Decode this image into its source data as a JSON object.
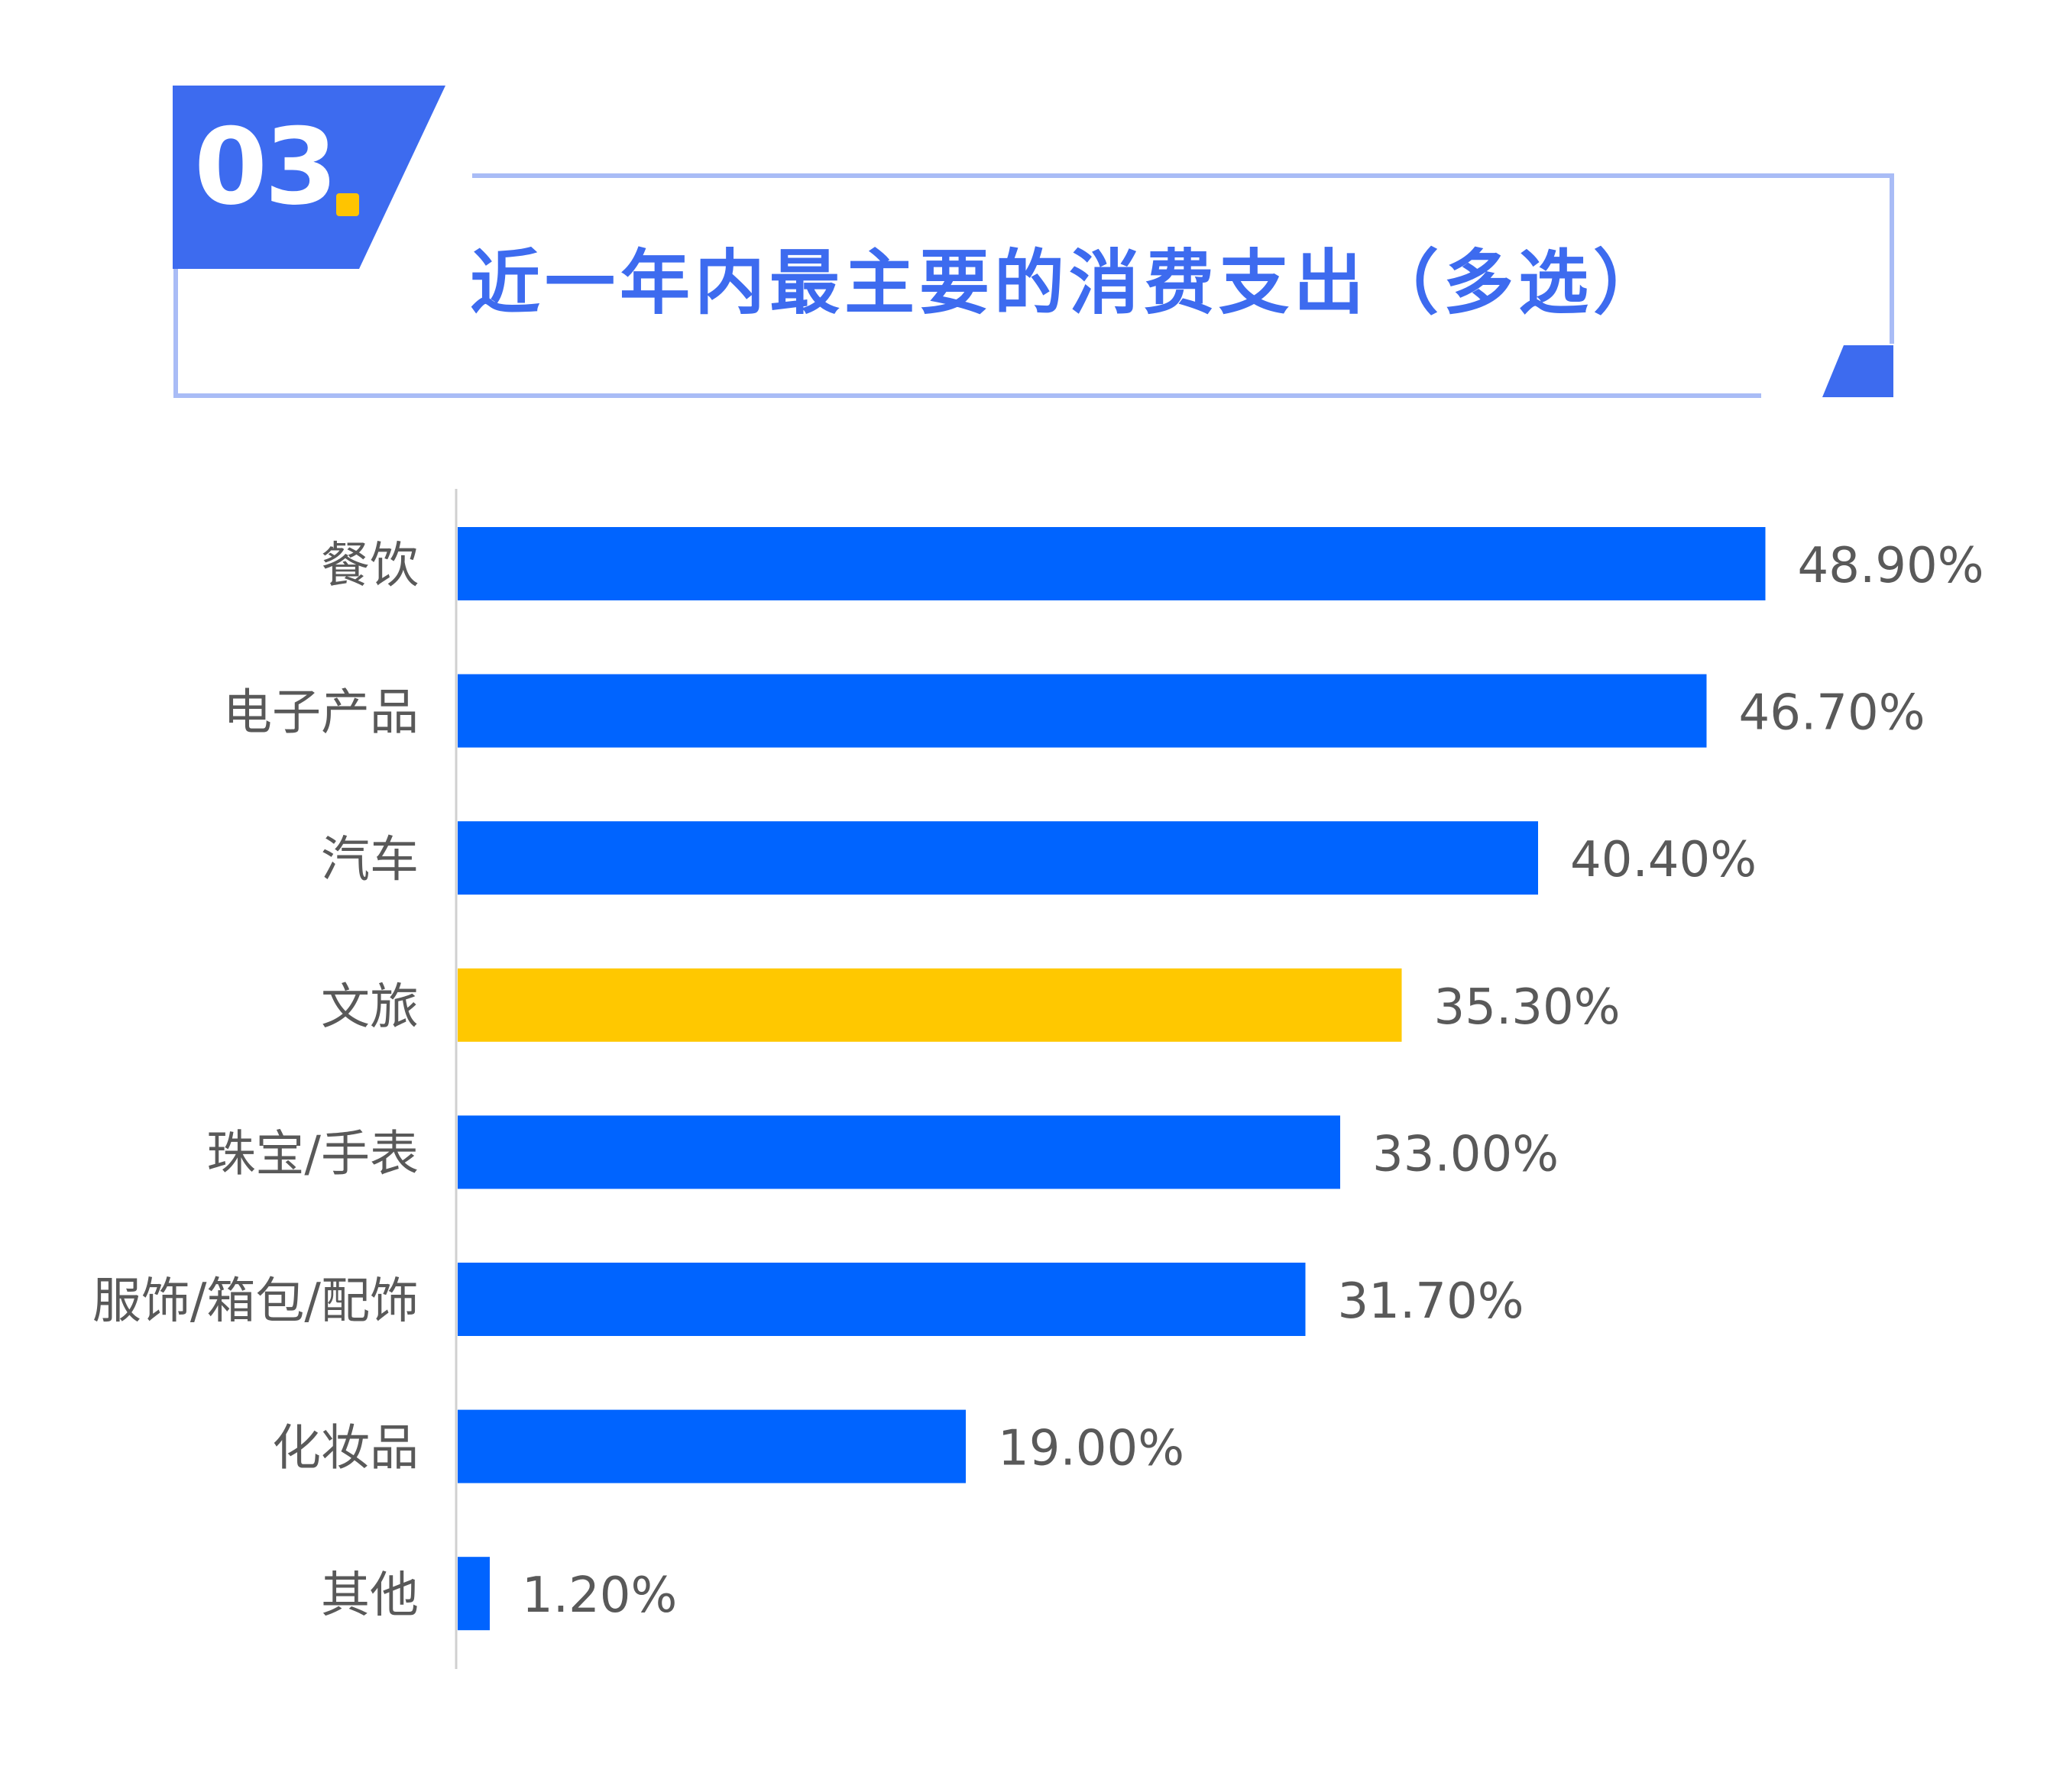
{
  "header": {
    "number": "03",
    "title": "近一年内最主要的消费支出（多选）",
    "colors": {
      "accent": "#3d6bef",
      "frame": "#a9bcf6",
      "dot": "#ffc400"
    }
  },
  "chart_data": {
    "type": "bar",
    "orientation": "horizontal",
    "title": "近一年内最主要的消费支出（多选）",
    "xlabel": "",
    "ylabel": "",
    "xlim": [
      0,
      50
    ],
    "grid": false,
    "categories": [
      "餐饮",
      "电子产品",
      "汽车",
      "文旅",
      "珠宝/手表",
      "服饰/箱包/配饰",
      "化妆品",
      "其他"
    ],
    "values": [
      48.9,
      46.7,
      40.4,
      35.3,
      33.0,
      31.7,
      19.0,
      1.2
    ],
    "value_labels": [
      "48.90%",
      "46.70%",
      "40.40%",
      "35.30%",
      "33.00%",
      "31.70%",
      "19.00%",
      "1.20%"
    ],
    "colors": {
      "default": "#0064ff",
      "highlight": "#ffc800",
      "highlight_category": "文旅",
      "axis": "#d0d0d0",
      "label_text": "#595959"
    }
  }
}
